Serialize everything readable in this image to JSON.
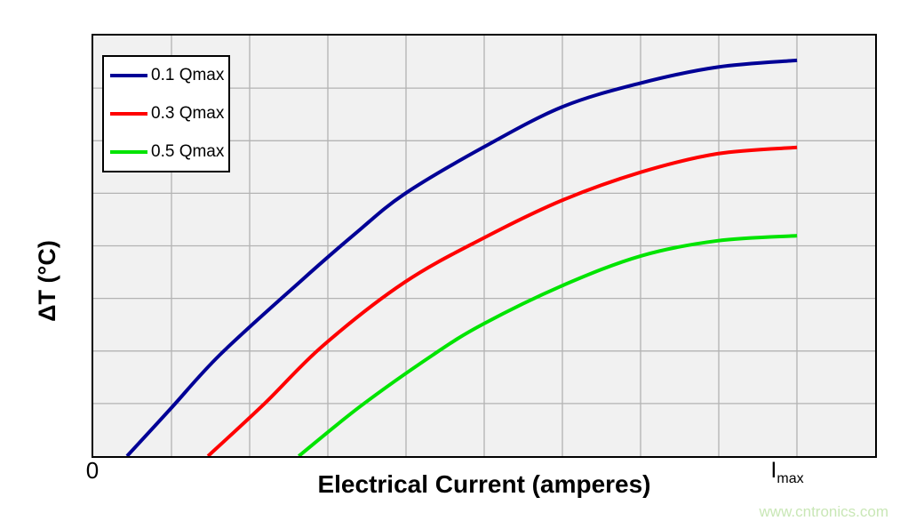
{
  "page": {
    "watermark": "www.cntronics.com"
  },
  "chart_data": {
    "type": "line",
    "title": "",
    "xlabel": "Electrical Current (amperes)",
    "ylabel": "ΔT (°C)",
    "x_axis": {
      "unit": "fraction of Imax",
      "min": 0,
      "max": 1.111,
      "grid_divisions": 10,
      "tick_zero_label": "0",
      "tick_imax": {
        "base": "I",
        "sub": "max"
      }
    },
    "y_axis": {
      "unit": "normalized temperature rise (unlabeled axis)",
      "min": 0,
      "max": 1,
      "grid_divisions": 8,
      "tick_labels": []
    },
    "grid": true,
    "legend_position": "top-left",
    "series": [
      {
        "name": "0.1 Qmax",
        "color": "#000096",
        "x": [
          0.048,
          0.109,
          0.18,
          0.294,
          0.373,
          0.442,
          0.554,
          0.666,
          0.778,
          0.887,
          1.0
        ],
        "y": [
          0.0,
          0.111,
          0.241,
          0.415,
          0.53,
          0.623,
          0.734,
          0.83,
          0.887,
          0.925,
          0.941
        ]
      },
      {
        "name": "0.3 Qmax",
        "color": "#FF0000",
        "x": [
          0.163,
          0.244,
          0.326,
          0.442,
          0.554,
          0.666,
          0.778,
          0.887,
          1.0
        ],
        "y": [
          0.0,
          0.126,
          0.262,
          0.413,
          0.518,
          0.608,
          0.675,
          0.719,
          0.734
        ]
      },
      {
        "name": "0.5 Qmax",
        "color": "#00E400",
        "x": [
          0.292,
          0.38,
          0.483,
          0.554,
          0.666,
          0.778,
          0.887,
          1.0
        ],
        "y": [
          0.0,
          0.119,
          0.241,
          0.314,
          0.405,
          0.476,
          0.512,
          0.524
        ]
      }
    ],
    "line_width": 4,
    "colors": {
      "plot_bg": "#F1F1F1",
      "grid": "#B3B3B3",
      "border": "#000000",
      "watermark": "#C9E7B6"
    }
  }
}
